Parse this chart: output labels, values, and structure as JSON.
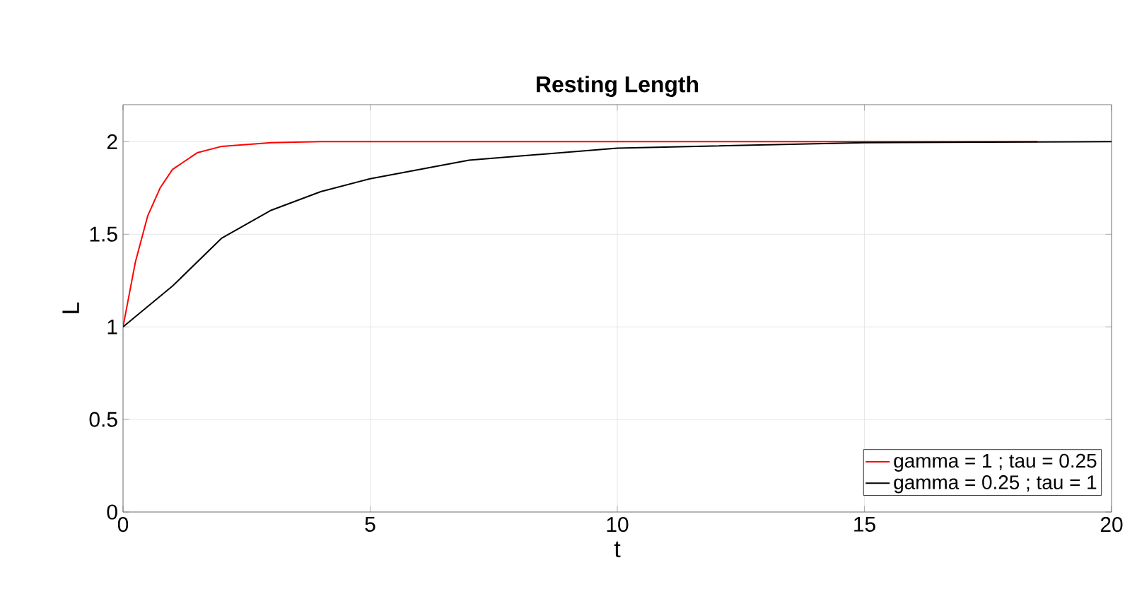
{
  "chart_data": {
    "type": "line",
    "title": "**Resting Length**",
    "xlabel": "t",
    "ylabel": "L",
    "xlim": [
      0,
      20
    ],
    "ylim": [
      0,
      2.2
    ],
    "xticks": [
      0,
      5,
      10,
      15,
      20
    ],
    "yticks": [
      0,
      0.5,
      1,
      1.5,
      2
    ],
    "grid": true,
    "legend": "bottom right",
    "line_style": "solid",
    "marker": "none",
    "series": [
      {
        "name": "gamma = 1 ; tau = 0.25",
        "color": "#ff0000",
        "x": [
          0,
          0.25,
          0.5,
          0.75,
          1,
          1.5,
          2,
          3,
          4,
          10,
          18.5
        ],
        "values": [
          1,
          1.35,
          1.6,
          1.75,
          1.85,
          1.94,
          1.975,
          1.995,
          2,
          2,
          2
        ]
      },
      {
        "name": "gamma = 0.25 ; tau = 1",
        "color": "#000000",
        "x": [
          0,
          1,
          2,
          3,
          4,
          5,
          7,
          10,
          15,
          20
        ],
        "values": [
          1,
          1.22,
          1.48,
          1.63,
          1.73,
          1.8,
          1.9,
          1.965,
          1.995,
          2
        ]
      }
    ]
  }
}
